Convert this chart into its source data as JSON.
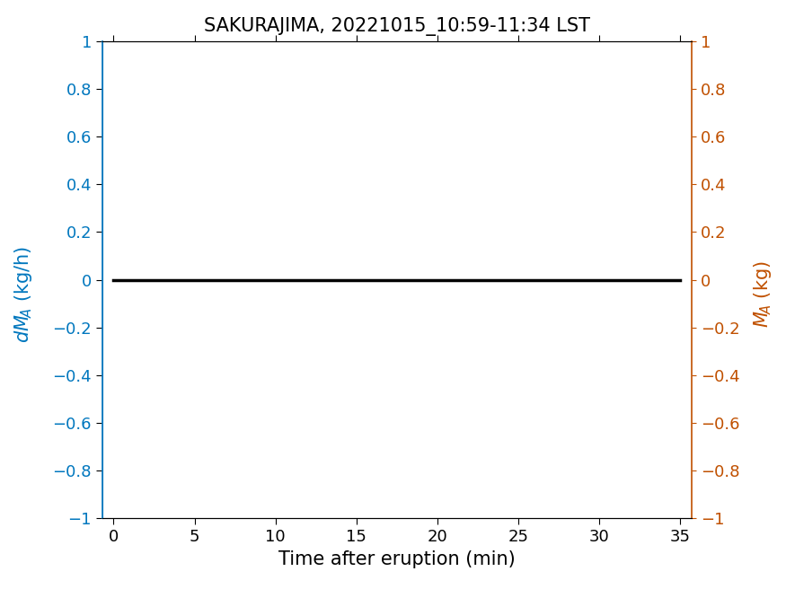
{
  "title": "SAKURAJIMA, 20221015_10:59-11:34 LST",
  "xlabel": "Time after eruption (min)",
  "left_color": "#0077BE",
  "right_color": "#C05000",
  "line_color": "#000000",
  "line_width": 2.5,
  "xlim": [
    -0.7,
    35.7
  ],
  "ylim": [
    -1,
    1
  ],
  "xticks": [
    0,
    5,
    10,
    15,
    20,
    25,
    30,
    35
  ],
  "yticks": [
    -1,
    -0.8,
    -0.6,
    -0.4,
    -0.2,
    0,
    0.2,
    0.4,
    0.6,
    0.8,
    1
  ],
  "ytick_labels": [
    "−1",
    "−0.8",
    "−0.6",
    "−0.4",
    "−0.2",
    "0",
    "0.2",
    "0.4",
    "0.6",
    "0.8",
    "1"
  ],
  "x_data": [
    0,
    35
  ],
  "y_data": [
    0,
    0
  ],
  "title_fontsize": 15,
  "label_fontsize": 15,
  "tick_fontsize": 13,
  "bg_color": "#ffffff"
}
